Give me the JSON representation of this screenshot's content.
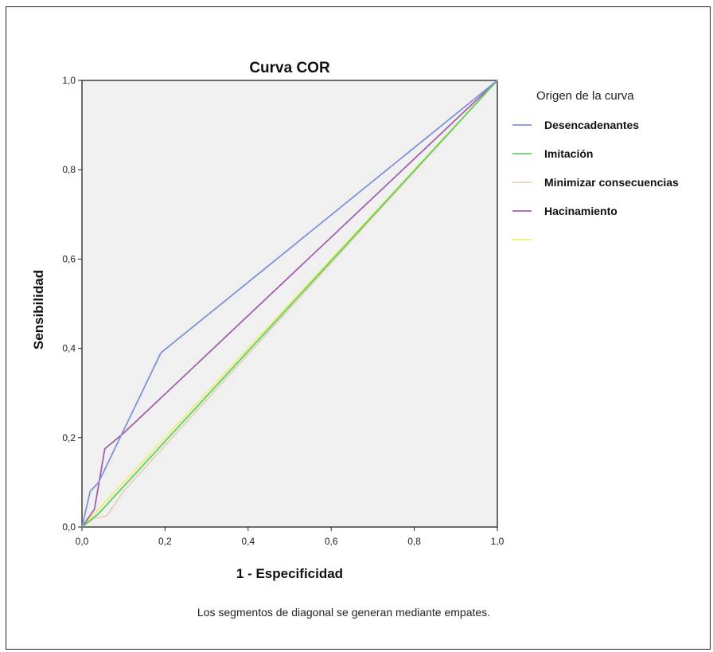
{
  "chart_data": {
    "type": "line",
    "title": "Curva COR",
    "xlabel": "1 - Especificidad",
    "ylabel": "Sensibilidad",
    "xlim": [
      0,
      1
    ],
    "ylim": [
      0,
      1
    ],
    "xticks": [
      "0,0",
      "0,2",
      "0,4",
      "0,6",
      "0,8",
      "1,0"
    ],
    "yticks": [
      "0,0",
      "0,2",
      "0,4",
      "0,6",
      "0,8",
      "1,0"
    ],
    "tick_values": [
      0,
      0.2,
      0.4,
      0.6,
      0.8,
      1.0
    ],
    "grid": false,
    "plot_background": "#f0f0f0",
    "legend_position": "right",
    "legend_title": "Origen de la curva",
    "series": [
      {
        "name": "Desencadenantes",
        "color": "#7f93d6",
        "points": [
          [
            0,
            0
          ],
          [
            0.02,
            0.08
          ],
          [
            0.04,
            0.1
          ],
          [
            0.19,
            0.39
          ],
          [
            1,
            1
          ]
        ]
      },
      {
        "name": "Imitación",
        "color": "#5fcf5f",
        "points": [
          [
            0,
            0
          ],
          [
            0.04,
            0.03
          ],
          [
            1,
            1
          ]
        ]
      },
      {
        "name": "Minimizar consecuencias",
        "color": "#e3d2b8",
        "points": [
          [
            0,
            0
          ],
          [
            0.03,
            0.02
          ],
          [
            0.06,
            0.025
          ],
          [
            0.1,
            0.08
          ],
          [
            1,
            1
          ]
        ]
      },
      {
        "name": "Hacinamiento",
        "color": "#a35fae",
        "points": [
          [
            0,
            0
          ],
          [
            0.03,
            0.04
          ],
          [
            0.055,
            0.175
          ],
          [
            0.1,
            0.21
          ],
          [
            1,
            1
          ]
        ]
      },
      {
        "name": "",
        "color": "#eded7a",
        "points": [
          [
            0,
            0
          ],
          [
            1,
            1
          ]
        ]
      }
    ],
    "footnote": "Los segmentos de diagonal se generan mediante empates."
  }
}
